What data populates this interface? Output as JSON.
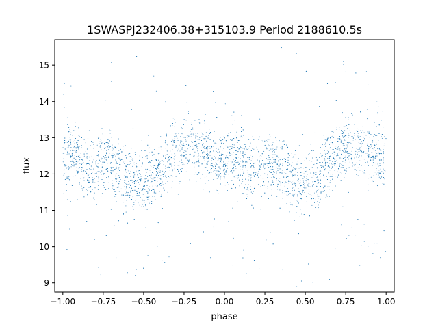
{
  "chart_data": {
    "type": "scatter",
    "title": "1SWASPJ232406.38+315103.9 Period 2188610.5s",
    "xlabel": "phase",
    "ylabel": "flux",
    "xlim": [
      -1.05,
      1.05
    ],
    "ylim": [
      8.75,
      15.7
    ],
    "x_ticks": [
      -1.0,
      -0.75,
      -0.5,
      -0.25,
      0.0,
      0.25,
      0.5,
      0.75,
      1.0
    ],
    "x_tick_labels": [
      "−1.00",
      "−0.75",
      "−0.50",
      "−0.25",
      "0.00",
      "0.25",
      "0.50",
      "0.75",
      "1.00"
    ],
    "y_ticks": [
      9,
      10,
      11,
      12,
      13,
      14,
      15
    ],
    "y_tick_labels": [
      "9",
      "10",
      "11",
      "12",
      "13",
      "14",
      "15"
    ],
    "grid": false,
    "legend": "none",
    "point_color": "#1f77b4",
    "series": [
      {
        "x": [
          -1.0,
          -0.95,
          -0.9,
          -0.85,
          -0.8,
          -0.75,
          -0.7,
          -0.65,
          -0.6,
          -0.55,
          -0.5,
          -0.45,
          -0.4,
          -0.35,
          -0.3,
          -0.25,
          -0.2,
          -0.15,
          -0.1,
          -0.05,
          0.0,
          0.05,
          0.1,
          0.15,
          0.2,
          0.25,
          0.3,
          0.35,
          0.4,
          0.45,
          0.5,
          0.55,
          0.6,
          0.65,
          0.7,
          0.75,
          0.8,
          0.85,
          0.9,
          0.95,
          1.0
        ],
        "y": [
          12.3,
          12.6,
          12.4,
          12.1,
          12.2,
          12.4,
          12.3,
          12.1,
          11.9,
          11.8,
          11.8,
          11.9,
          12.0,
          12.3,
          12.6,
          12.8,
          12.8,
          12.7,
          12.6,
          12.4,
          12.3,
          12.6,
          12.4,
          12.1,
          12.2,
          12.4,
          12.3,
          12.1,
          11.9,
          11.8,
          11.8,
          11.9,
          12.0,
          12.3,
          12.6,
          12.8,
          12.8,
          12.7,
          12.6,
          12.4,
          12.3
        ]
      }
    ]
  }
}
